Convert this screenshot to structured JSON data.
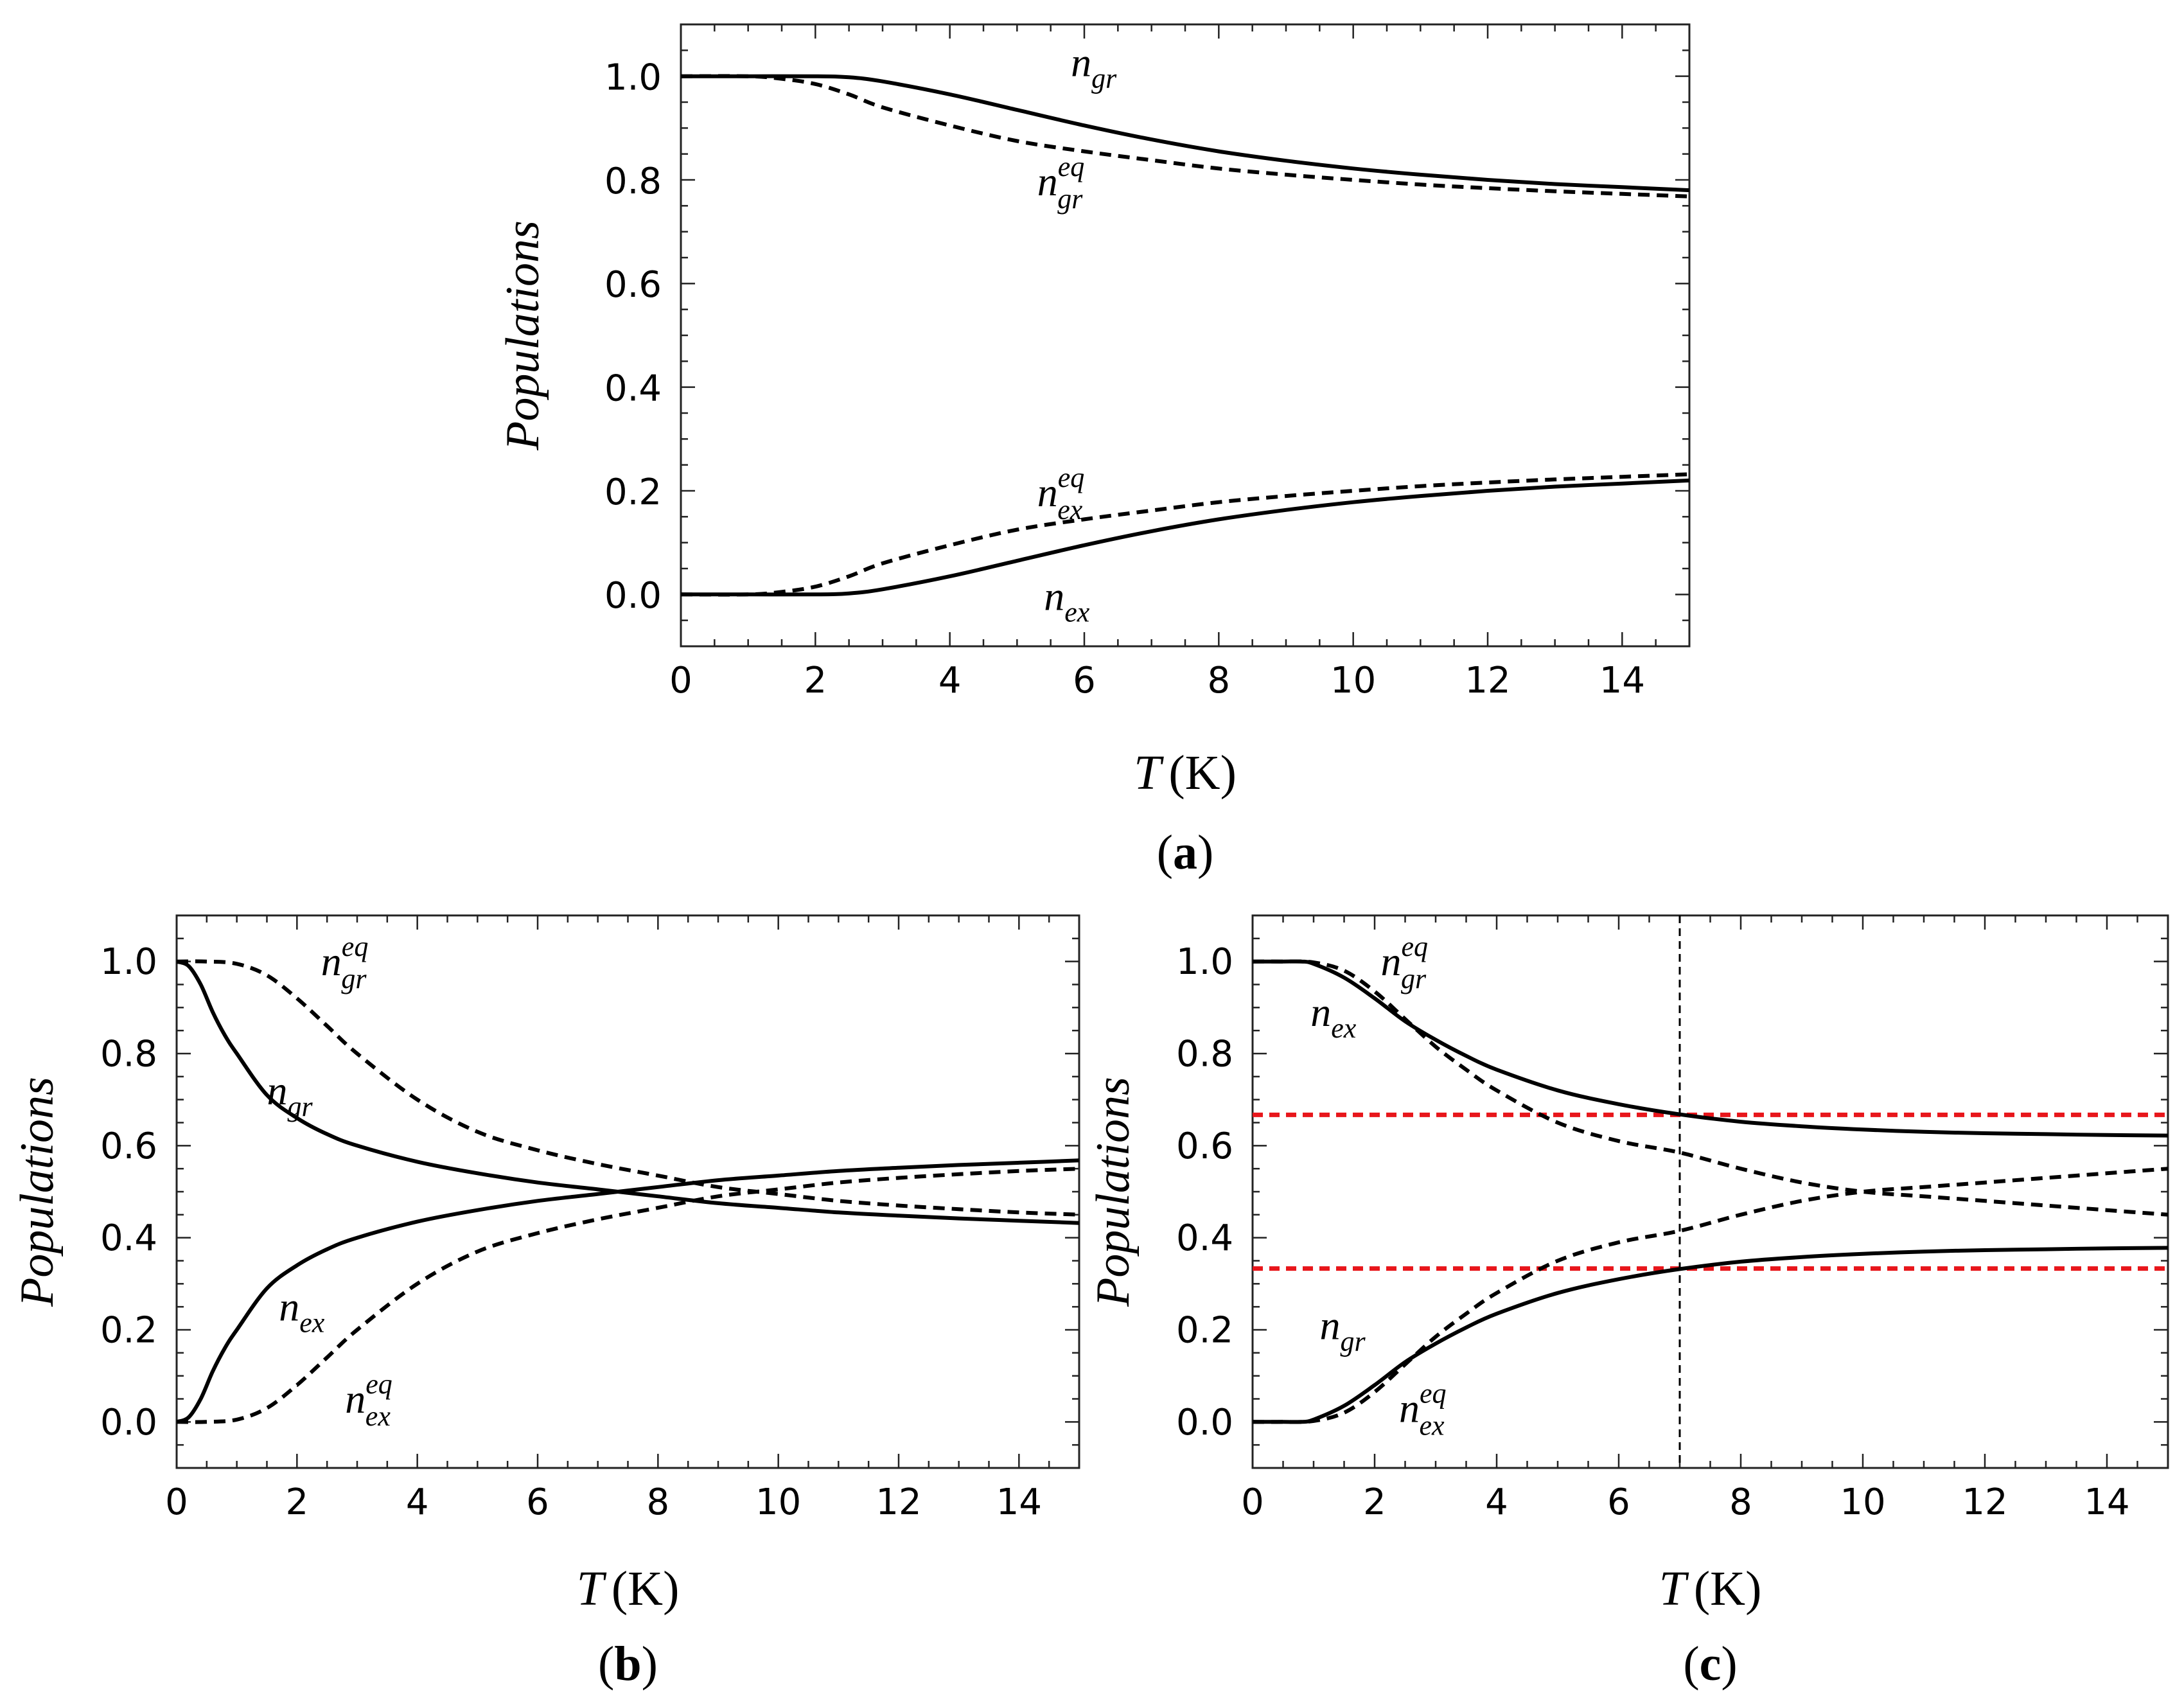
{
  "chart_data": [
    {
      "id": "a",
      "type": "line",
      "panel_label": "a",
      "xlabel_var": "T",
      "xlabel_unit": "(K)",
      "ylabel": "Populations",
      "xlim": [
        0,
        15
      ],
      "ylim": [
        -0.1,
        1.1
      ],
      "xticks": [
        0,
        2,
        4,
        6,
        8,
        10,
        12,
        14
      ],
      "yticks": [
        0.0,
        0.2,
        0.4,
        0.6,
        0.8,
        1.0
      ],
      "series": [
        {
          "name": "n_gr",
          "style": "solid",
          "color": "#000000",
          "x": [
            0,
            1,
            2,
            2.5,
            3,
            4,
            5,
            6,
            7,
            8,
            9,
            10,
            11,
            12,
            13,
            14,
            15
          ],
          "y": [
            1.0,
            1.0,
            1.0,
            0.998,
            0.99,
            0.965,
            0.935,
            0.905,
            0.878,
            0.855,
            0.837,
            0.822,
            0.81,
            0.8,
            0.792,
            0.786,
            0.78
          ]
        },
        {
          "name": "n_gr_eq",
          "style": "dashed",
          "color": "#000000",
          "x": [
            0,
            1,
            1.5,
            2,
            2.5,
            3,
            4,
            5,
            6,
            7,
            8,
            9,
            10,
            11,
            12,
            13,
            14,
            15
          ],
          "y": [
            1.0,
            1.0,
            0.995,
            0.985,
            0.965,
            0.94,
            0.905,
            0.875,
            0.855,
            0.838,
            0.822,
            0.81,
            0.8,
            0.791,
            0.784,
            0.778,
            0.773,
            0.768
          ]
        },
        {
          "name": "n_ex",
          "style": "solid",
          "color": "#000000",
          "x": [
            0,
            1,
            2,
            2.5,
            3,
            4,
            5,
            6,
            7,
            8,
            9,
            10,
            11,
            12,
            13,
            14,
            15
          ],
          "y": [
            0.0,
            0.0,
            0.0,
            0.002,
            0.01,
            0.035,
            0.065,
            0.095,
            0.122,
            0.145,
            0.163,
            0.178,
            0.19,
            0.2,
            0.208,
            0.214,
            0.22
          ]
        },
        {
          "name": "n_ex_eq",
          "style": "dashed",
          "color": "#000000",
          "x": [
            0,
            1,
            1.5,
            2,
            2.5,
            3,
            4,
            5,
            6,
            7,
            8,
            9,
            10,
            11,
            12,
            13,
            14,
            15
          ],
          "y": [
            0.0,
            0.0,
            0.005,
            0.015,
            0.035,
            0.06,
            0.095,
            0.125,
            0.145,
            0.162,
            0.178,
            0.19,
            0.2,
            0.209,
            0.216,
            0.222,
            0.227,
            0.232
          ]
        }
      ],
      "annotations": [
        {
          "main": "n",
          "sub": "gr",
          "sup": "",
          "x": 5.8,
          "y": 1.0
        },
        {
          "main": "n",
          "sub": "gr",
          "sup": "eq",
          "x": 5.3,
          "y": 0.77
        },
        {
          "main": "n",
          "sub": "ex",
          "sup": "eq",
          "x": 5.3,
          "y": 0.17
        },
        {
          "main": "n",
          "sub": "ex",
          "sup": "",
          "x": 5.4,
          "y": -0.03
        }
      ]
    },
    {
      "id": "b",
      "type": "line",
      "panel_label": "b",
      "xlabel_var": "T",
      "xlabel_unit": "(K)",
      "ylabel": "Populations",
      "xlim": [
        0,
        15
      ],
      "ylim": [
        -0.1,
        1.1
      ],
      "xticks": [
        0,
        2,
        4,
        6,
        8,
        10,
        12,
        14
      ],
      "yticks": [
        0.0,
        0.2,
        0.4,
        0.6,
        0.8,
        1.0
      ],
      "series": [
        {
          "name": "n_gr",
          "style": "solid",
          "color": "#000000",
          "x": [
            0,
            0.2,
            0.4,
            0.6,
            0.8,
            1,
            1.5,
            2,
            2.5,
            3,
            4,
            5,
            6,
            7,
            8,
            9,
            10,
            11,
            12,
            13,
            14,
            15
          ],
          "y": [
            1.0,
            0.99,
            0.95,
            0.89,
            0.84,
            0.8,
            0.71,
            0.66,
            0.625,
            0.6,
            0.565,
            0.54,
            0.52,
            0.505,
            0.49,
            0.475,
            0.465,
            0.455,
            0.448,
            0.442,
            0.437,
            0.432
          ]
        },
        {
          "name": "n_ex",
          "style": "solid",
          "color": "#000000",
          "x": [
            0,
            0.2,
            0.4,
            0.6,
            0.8,
            1,
            1.5,
            2,
            2.5,
            3,
            4,
            5,
            6,
            7,
            8,
            9,
            10,
            11,
            12,
            13,
            14,
            15
          ],
          "y": [
            0.0,
            0.01,
            0.05,
            0.11,
            0.16,
            0.2,
            0.29,
            0.34,
            0.375,
            0.4,
            0.435,
            0.46,
            0.48,
            0.495,
            0.51,
            0.525,
            0.535,
            0.545,
            0.552,
            0.558,
            0.563,
            0.568
          ]
        },
        {
          "name": "n_gr_eq",
          "style": "dashed",
          "color": "#000000",
          "x": [
            0,
            0.5,
            1,
            1.5,
            2,
            2.5,
            3,
            4,
            5,
            6,
            7,
            8,
            9,
            10,
            11,
            12,
            13,
            14,
            15
          ],
          "y": [
            1.0,
            1.0,
            0.995,
            0.97,
            0.92,
            0.86,
            0.8,
            0.7,
            0.63,
            0.59,
            0.56,
            0.535,
            0.51,
            0.495,
            0.48,
            0.47,
            0.462,
            0.455,
            0.45
          ]
        },
        {
          "name": "n_ex_eq",
          "style": "dashed",
          "color": "#000000",
          "x": [
            0,
            0.5,
            1,
            1.5,
            2,
            2.5,
            3,
            4,
            5,
            6,
            7,
            8,
            9,
            10,
            11,
            12,
            13,
            14,
            15
          ],
          "y": [
            0.0,
            0.0,
            0.005,
            0.03,
            0.08,
            0.14,
            0.2,
            0.3,
            0.37,
            0.41,
            0.44,
            0.465,
            0.49,
            0.505,
            0.52,
            0.53,
            0.538,
            0.545,
            0.55
          ]
        }
      ],
      "annotations": [
        {
          "main": "n",
          "sub": "gr",
          "sup": "eq",
          "x": 2.4,
          "y": 0.97
        },
        {
          "main": "n",
          "sub": "gr",
          "sup": "",
          "x": 1.5,
          "y": 0.69
        },
        {
          "main": "n",
          "sub": "ex",
          "sup": "",
          "x": 1.7,
          "y": 0.22
        },
        {
          "main": "n",
          "sub": "ex",
          "sup": "eq",
          "x": 2.8,
          "y": 0.02
        }
      ]
    },
    {
      "id": "c",
      "type": "line",
      "panel_label": "c",
      "xlabel_var": "T",
      "xlabel_unit": "(K)",
      "ylabel": "Populations",
      "xlim": [
        0,
        15
      ],
      "ylim": [
        -0.1,
        1.1
      ],
      "xticks": [
        0,
        2,
        4,
        6,
        8,
        10,
        12,
        14
      ],
      "yticks": [
        0.0,
        0.2,
        0.4,
        0.6,
        0.8,
        1.0
      ],
      "series": [
        {
          "name": "n_ex (upper solid)",
          "style": "solid",
          "color": "#000000",
          "x": [
            0,
            0.5,
            0.8,
            1,
            1.5,
            2,
            2.5,
            3,
            3.5,
            4,
            5,
            6,
            7,
            8,
            9,
            10,
            11,
            12,
            13,
            14,
            15
          ],
          "y": [
            1.0,
            1.0,
            1.0,
            0.995,
            0.965,
            0.92,
            0.87,
            0.83,
            0.795,
            0.765,
            0.72,
            0.69,
            0.668,
            0.652,
            0.642,
            0.635,
            0.63,
            0.627,
            0.625,
            0.623,
            0.622
          ]
        },
        {
          "name": "n_gr (lower solid)",
          "style": "solid",
          "color": "#000000",
          "x": [
            0,
            0.5,
            0.8,
            1,
            1.5,
            2,
            2.5,
            3,
            3.5,
            4,
            5,
            6,
            7,
            8,
            9,
            10,
            11,
            12,
            13,
            14,
            15
          ],
          "y": [
            0.0,
            0.0,
            0.0,
            0.005,
            0.035,
            0.08,
            0.13,
            0.17,
            0.205,
            0.235,
            0.28,
            0.31,
            0.332,
            0.348,
            0.358,
            0.365,
            0.37,
            0.373,
            0.375,
            0.377,
            0.378
          ]
        },
        {
          "name": "n_gr_eq",
          "style": "dashed",
          "color": "#000000",
          "x": [
            0,
            0.5,
            1,
            1.5,
            2,
            2.5,
            3,
            3.5,
            4,
            5,
            6,
            7,
            8,
            9,
            10,
            11,
            12,
            13,
            14,
            15
          ],
          "y": [
            1.0,
            1.0,
            0.998,
            0.98,
            0.935,
            0.875,
            0.815,
            0.765,
            0.72,
            0.65,
            0.61,
            0.585,
            0.55,
            0.52,
            0.5,
            0.49,
            0.48,
            0.47,
            0.46,
            0.45
          ]
        },
        {
          "name": "n_ex_eq",
          "style": "dashed",
          "color": "#000000",
          "x": [
            0,
            0.5,
            1,
            1.5,
            2,
            2.5,
            3,
            3.5,
            4,
            5,
            6,
            7,
            8,
            9,
            10,
            11,
            12,
            13,
            14,
            15
          ],
          "y": [
            0.0,
            0.0,
            0.002,
            0.02,
            0.065,
            0.125,
            0.185,
            0.235,
            0.28,
            0.35,
            0.39,
            0.415,
            0.45,
            0.48,
            0.5,
            0.51,
            0.52,
            0.53,
            0.54,
            0.55
          ]
        }
      ],
      "reference_lines": [
        {
          "orientation": "horizontal",
          "value": 0.667,
          "style": "dashed",
          "color": "#e8161b"
        },
        {
          "orientation": "horizontal",
          "value": 0.333,
          "style": "dashed",
          "color": "#e8161b"
        },
        {
          "orientation": "vertical",
          "value": 7.0,
          "style": "dashed",
          "color": "#000000"
        }
      ],
      "annotations": [
        {
          "main": "n",
          "sub": "gr",
          "sup": "eq",
          "x": 2.1,
          "y": 0.97
        },
        {
          "main": "n",
          "sub": "ex",
          "sup": "",
          "x": 0.95,
          "y": 0.86
        },
        {
          "main": "n",
          "sub": "gr",
          "sup": "",
          "x": 1.1,
          "y": 0.18
        },
        {
          "main": "n",
          "sub": "ex",
          "sup": "eq",
          "x": 2.4,
          "y": 0.0
        }
      ]
    }
  ]
}
